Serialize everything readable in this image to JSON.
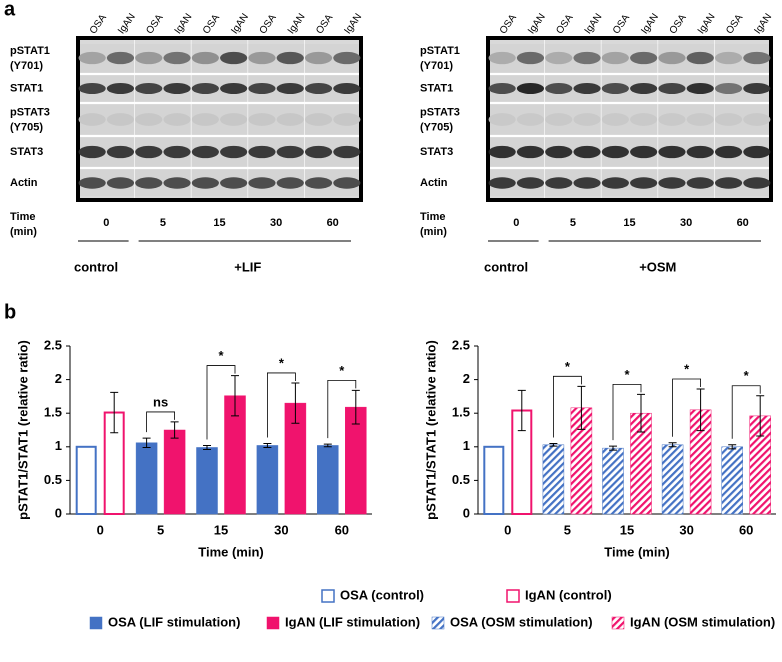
{
  "panel_a": "a",
  "panel_b": "b",
  "blots": [
    {
      "lanes": [
        "OSA",
        "IgAN",
        "OSA",
        "IgAN",
        "OSA",
        "IgAN",
        "OSA",
        "IgAN",
        "OSA",
        "IgAN"
      ],
      "rows": [
        "pSTAT1 (Y701)",
        "STAT1",
        "pSTAT3 (Y705)",
        "STAT3",
        "Actin"
      ],
      "time_label": "Time (min)",
      "times": [
        "0",
        "5",
        "15",
        "30",
        "60"
      ],
      "groups": [
        "control",
        "+LIF"
      ]
    },
    {
      "lanes": [
        "OSA",
        "IgAN",
        "OSA",
        "IgAN",
        "OSA",
        "IgAN",
        "OSA",
        "IgAN",
        "OSA",
        "IgAN"
      ],
      "rows": [
        "pSTAT1 (Y701)",
        "STAT1",
        "pSTAT3 (Y705)",
        "STAT3",
        "Actin"
      ],
      "time_label": "Time (min)",
      "times": [
        "0",
        "5",
        "15",
        "30",
        "60"
      ],
      "groups": [
        "control",
        "+OSM"
      ]
    }
  ],
  "chart_data": [
    {
      "type": "bar",
      "ylabel": "pSTAT1/STAT1 (relative ratio)",
      "xlabel": "Time (min)",
      "categories": [
        "0",
        "5",
        "15",
        "30",
        "60"
      ],
      "ylim": [
        0,
        2.5
      ],
      "yticks": [
        0,
        0.5,
        1,
        1.5,
        2,
        2.5
      ],
      "series": [
        {
          "name": "OSA (control)",
          "color": "#4472c4",
          "style": "hollow",
          "values": [
            1.0,
            null,
            null,
            null,
            null
          ],
          "errors": [
            0,
            null,
            null,
            null,
            null
          ]
        },
        {
          "name": "IgAN (control)",
          "color": "#f0136d",
          "style": "hollow",
          "values": [
            1.51,
            null,
            null,
            null,
            null
          ],
          "errors": [
            0.3,
            null,
            null,
            null,
            null
          ]
        },
        {
          "name": "OSA (LIF stimulation)",
          "color": "#4472c4",
          "style": "filled",
          "values": [
            null,
            1.06,
            0.99,
            1.02,
            1.02
          ],
          "errors": [
            null,
            0.07,
            0.03,
            0.03,
            0.02
          ]
        },
        {
          "name": "IgAN (LIF stimulation)",
          "color": "#f0136d",
          "style": "filled",
          "values": [
            null,
            1.25,
            1.76,
            1.65,
            1.59
          ],
          "errors": [
            null,
            0.12,
            0.3,
            0.3,
            0.25
          ]
        }
      ],
      "annotations": [
        {
          "text": "ns",
          "x": "5"
        },
        {
          "text": "*",
          "x": "15"
        },
        {
          "text": "*",
          "x": "30"
        },
        {
          "text": "*",
          "x": "60"
        }
      ]
    },
    {
      "type": "bar",
      "ylabel": "pSTAT1/STAT1 (relative ratio)",
      "xlabel": "Time (min)",
      "categories": [
        "0",
        "5",
        "15",
        "30",
        "60"
      ],
      "ylim": [
        0,
        2.5
      ],
      "yticks": [
        0,
        0.5,
        1,
        1.5,
        2,
        2.5
      ],
      "series": [
        {
          "name": "OSA (control)",
          "color": "#4472c4",
          "style": "hollow",
          "values": [
            1.0,
            null,
            null,
            null,
            null
          ],
          "errors": [
            0,
            null,
            null,
            null,
            null
          ]
        },
        {
          "name": "IgAN (control)",
          "color": "#f0136d",
          "style": "hollow",
          "values": [
            1.54,
            null,
            null,
            null,
            null
          ],
          "errors": [
            0.3,
            null,
            null,
            null,
            null
          ]
        },
        {
          "name": "OSA (OSM stimulation)",
          "color": "#4472c4",
          "style": "hatched",
          "values": [
            null,
            1.03,
            0.98,
            1.03,
            1.0
          ],
          "errors": [
            null,
            0.02,
            0.03,
            0.03,
            0.03
          ]
        },
        {
          "name": "IgAN (OSM stimulation)",
          "color": "#f0136d",
          "style": "hatched",
          "values": [
            null,
            1.58,
            1.5,
            1.55,
            1.46
          ],
          "errors": [
            null,
            0.32,
            0.28,
            0.31,
            0.3
          ]
        }
      ],
      "annotations": [
        {
          "text": "*",
          "x": "5"
        },
        {
          "text": "*",
          "x": "15"
        },
        {
          "text": "*",
          "x": "30"
        },
        {
          "text": "*",
          "x": "60"
        }
      ]
    }
  ]
}
